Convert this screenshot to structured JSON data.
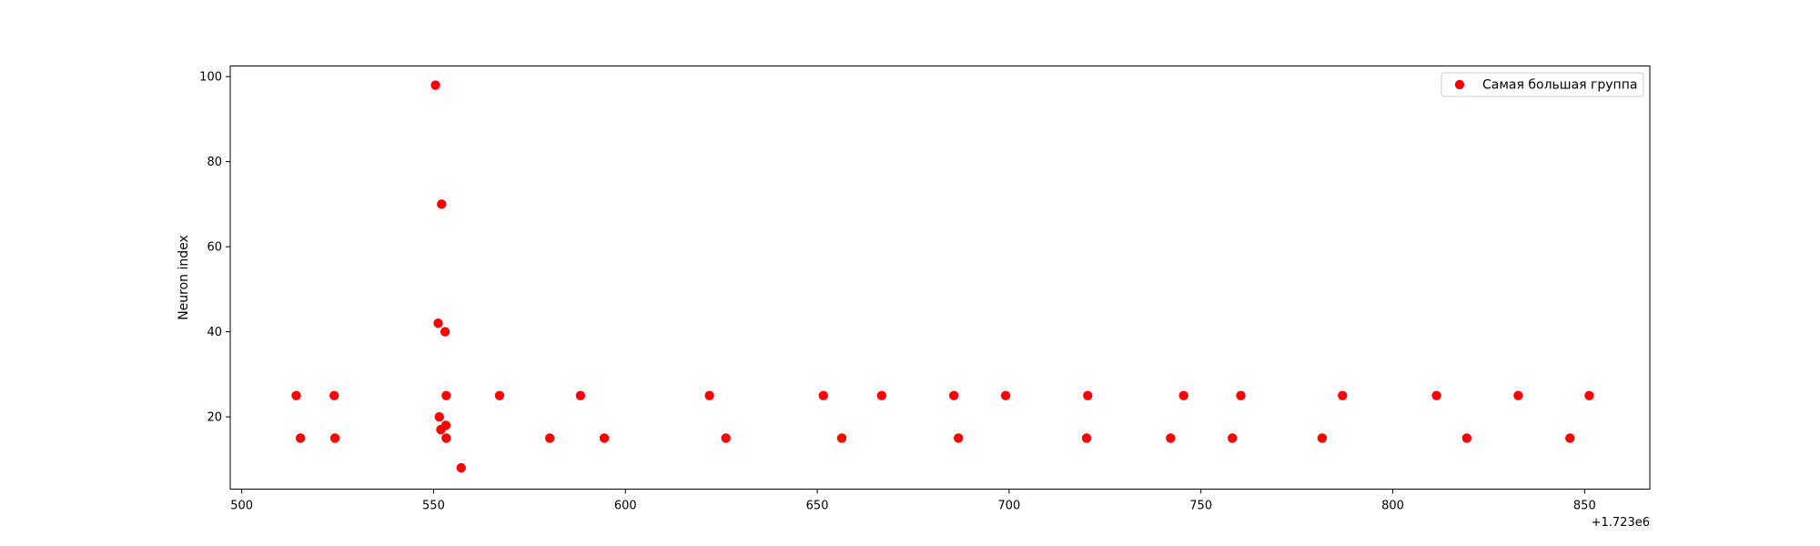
{
  "chart_data": {
    "type": "scatter",
    "title": "",
    "xlabel": "",
    "ylabel": "Neuron index",
    "x_offset_label": "+1.723e6",
    "xlim": [
      497,
      867
    ],
    "ylim": [
      3,
      102.5
    ],
    "xticks": [
      500,
      550,
      600,
      650,
      700,
      750,
      800,
      850
    ],
    "yticks": [
      20,
      40,
      60,
      80,
      100
    ],
    "grid": false,
    "legend_position": "top-right",
    "series": [
      {
        "name": "Самая большая группа",
        "color": "#ff0000",
        "points": [
          [
            514.2,
            25
          ],
          [
            515.3,
            15
          ],
          [
            524.1,
            25
          ],
          [
            524.3,
            15
          ],
          [
            550.5,
            98
          ],
          [
            551.2,
            42
          ],
          [
            551.5,
            20
          ],
          [
            551.9,
            17
          ],
          [
            552.1,
            70
          ],
          [
            553.0,
            40
          ],
          [
            553.2,
            18
          ],
          [
            553.3,
            25
          ],
          [
            553.3,
            15
          ],
          [
            557.2,
            8
          ],
          [
            567.2,
            25
          ],
          [
            580.3,
            15
          ],
          [
            588.3,
            25
          ],
          [
            594.5,
            15
          ],
          [
            621.9,
            25
          ],
          [
            626.2,
            15
          ],
          [
            651.6,
            25
          ],
          [
            656.4,
            15
          ],
          [
            666.8,
            25
          ],
          [
            685.6,
            25
          ],
          [
            686.8,
            15
          ],
          [
            699.1,
            25
          ],
          [
            720.2,
            15
          ],
          [
            720.5,
            25
          ],
          [
            742.1,
            15
          ],
          [
            745.5,
            25
          ],
          [
            758.2,
            15
          ],
          [
            760.4,
            25
          ],
          [
            781.6,
            15
          ],
          [
            786.9,
            25
          ],
          [
            811.4,
            25
          ],
          [
            819.3,
            15
          ],
          [
            832.7,
            25
          ],
          [
            846.2,
            15
          ],
          [
            851.2,
            25
          ]
        ]
      }
    ]
  }
}
